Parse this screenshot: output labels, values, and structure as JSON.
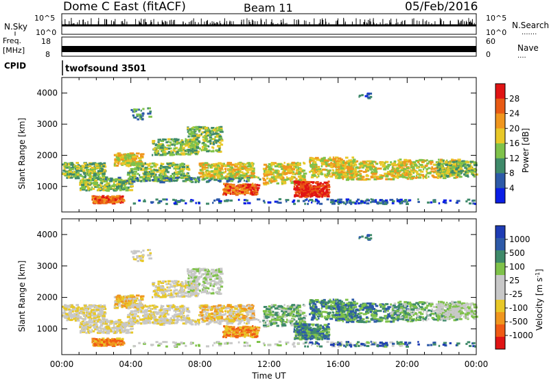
{
  "header": {
    "title": "Dome C East (fitACF)",
    "beam": "Beam 11",
    "date": "05/Feb/2016"
  },
  "aux_labels": {
    "nsky": "N.Sky",
    "nsearch": "N.Search",
    "freq": "Freq.",
    "freq_unit": "[MHz]",
    "nave": "Nave",
    "cpid": "CPID",
    "cpid_value": "twofsound 3501"
  },
  "aux_ticks": {
    "nsky_top": "10^5",
    "nsky_bottom": "10^0",
    "nsearch_top": "10^5",
    "nsearch_bottom": "10^0",
    "freq_top": "18",
    "freq_bottom": "8",
    "nave_top": "60",
    "nave_bottom": "0"
  },
  "colors": {
    "power_scale": [
      "#0a1ee6",
      "#2d5aa8",
      "#3f8a6a",
      "#7fc24a",
      "#e8c828",
      "#f0961e",
      "#e85a14",
      "#e01414"
    ],
    "velocity_scale": [
      "#e01414",
      "#f05a14",
      "#f0961e",
      "#e8c828",
      "#c8c8c8",
      "#c8c8c8",
      "#7fc24a",
      "#3f8a6a",
      "#2d5aa8",
      "#1e3cb4"
    ]
  },
  "chart_data": [
    {
      "type": "heatmap",
      "title": "Power",
      "xlabel": "",
      "ylabel": "Slant Range [km]",
      "xlim": [
        "00:00",
        "24:00"
      ],
      "ylim": [
        180,
        4500
      ],
      "y_ticks": [
        "1000",
        "2000",
        "3000",
        "4000"
      ],
      "colorbar_label": "Power [dB]",
      "colorbar_ticks": [
        "4",
        "8",
        "12",
        "16",
        "20",
        "24",
        "28"
      ],
      "colorbar_range": [
        0,
        32
      ],
      "grid": false,
      "description_values": {
        "band_center_km": 1400,
        "max_power_dB": 30,
        "peak_activity_hours": [
          13,
          16
        ]
      }
    },
    {
      "type": "heatmap",
      "title": "Velocity",
      "xlabel": "Time UT",
      "ylabel": "Slant Range [km]",
      "xlim": [
        "00:00",
        "24:00"
      ],
      "ylim": [
        180,
        4500
      ],
      "x_ticks": [
        "00:00",
        "04:00",
        "08:00",
        "12:00",
        "16:00",
        "20:00",
        "00:00"
      ],
      "y_ticks": [
        "1000",
        "2000",
        "3000",
        "4000"
      ],
      "colorbar_label": "Velocity [m s^-1]",
      "colorbar_ticks": [
        "1000",
        "500",
        "100",
        "25",
        "-25",
        "-100",
        "-500",
        "-1000"
      ],
      "grid": false
    }
  ]
}
